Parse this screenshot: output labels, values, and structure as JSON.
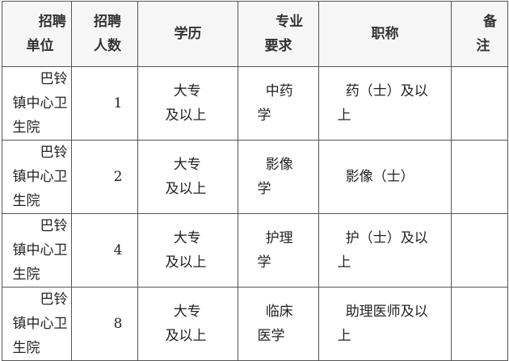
{
  "table": {
    "headers": [
      "招聘单位",
      "招聘人数",
      "学历",
      "专业要求",
      "职称",
      "备注"
    ],
    "rows": [
      {
        "unit": "巴铃镇中心卫生院",
        "count": "1",
        "education": "大专及以上",
        "major": "中药学",
        "title": "药（士）及以上",
        "note": ""
      },
      {
        "unit": "巴铃镇中心卫生院",
        "count": "2",
        "education": "大专及以上",
        "major": "影像学",
        "title": "影像（士）",
        "note": ""
      },
      {
        "unit": "巴铃镇中心卫生院",
        "count": "4",
        "education": "大专及以上",
        "major": "护理学",
        "title": "护（士）及以上",
        "note": ""
      },
      {
        "unit": "巴铃镇中心卫生院",
        "count": "8",
        "education": "大专及以上",
        "major": "临床医学",
        "title": "助理医师及以上",
        "note": ""
      }
    ]
  }
}
